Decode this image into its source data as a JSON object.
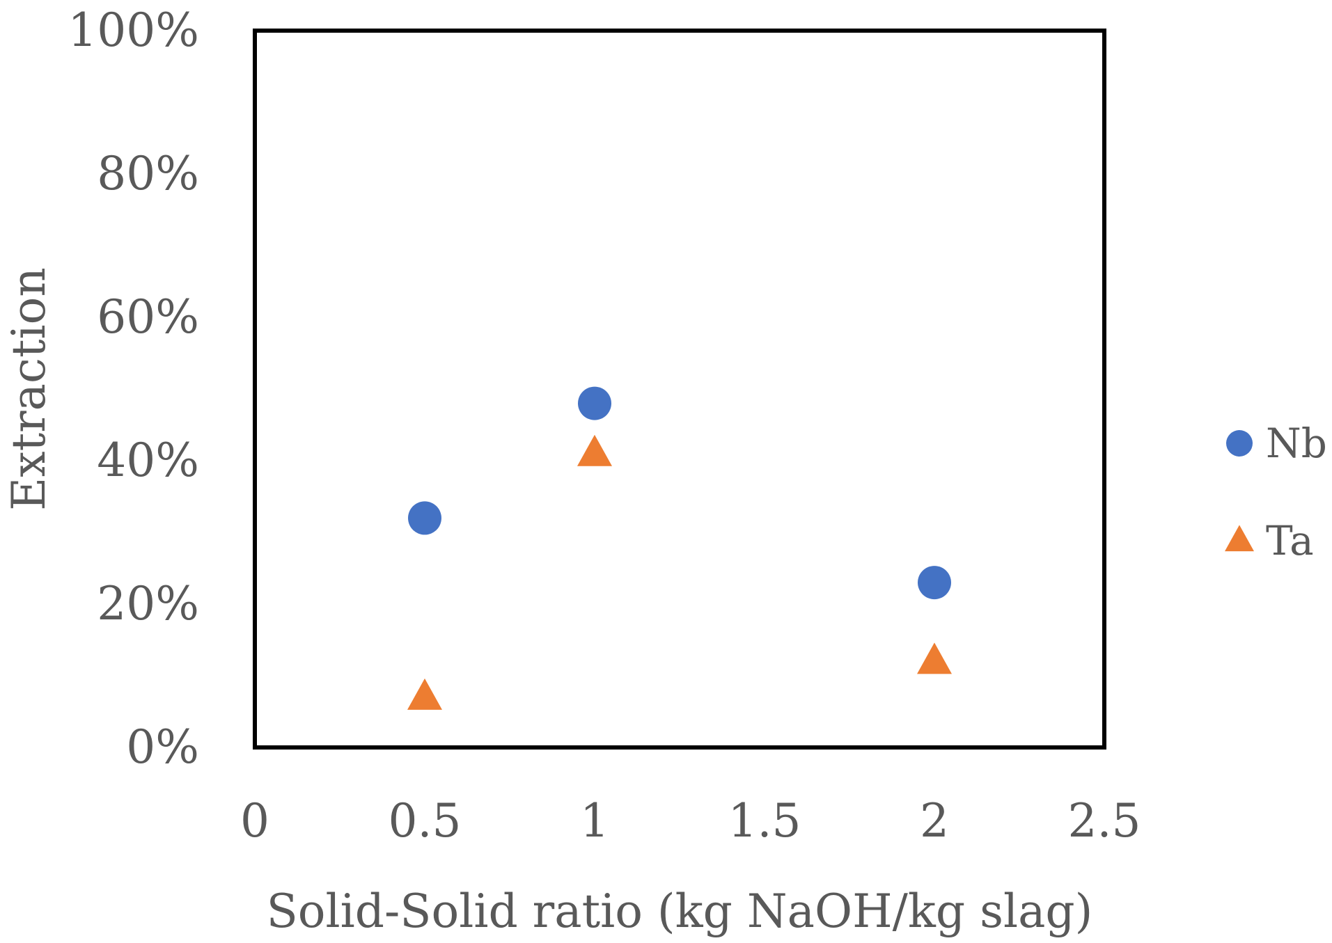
{
  "chart_data": {
    "type": "scatter",
    "xlabel": "Solid-Solid ratio (kg NaOH/kg slag)",
    "ylabel": "Extraction",
    "xlim": [
      0,
      2.5
    ],
    "ylim": [
      0,
      1
    ],
    "x_ticks": [
      "0",
      "0.5",
      "1",
      "1.5",
      "2",
      "2.5"
    ],
    "y_ticks": [
      "0%",
      "20%",
      "40%",
      "60%",
      "80%",
      "100%"
    ],
    "grid": false,
    "legend_position": "right",
    "series": [
      {
        "name": "Nb",
        "marker": "circle",
        "color": "#4472C4",
        "points": [
          {
            "x": 0.5,
            "y": 0.32
          },
          {
            "x": 1,
            "y": 0.48
          },
          {
            "x": 2,
            "y": 0.23
          }
        ]
      },
      {
        "name": "Ta",
        "marker": "triangle",
        "color": "#ED7D31",
        "points": [
          {
            "x": 0.5,
            "y": 0.07
          },
          {
            "x": 1,
            "y": 0.41
          },
          {
            "x": 2,
            "y": 0.12
          }
        ]
      }
    ]
  }
}
